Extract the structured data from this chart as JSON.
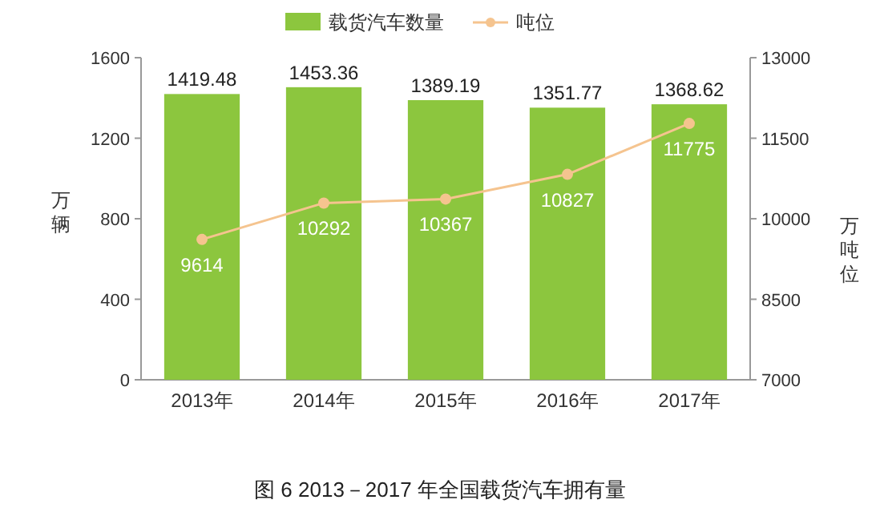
{
  "chart_data": {
    "type": "bar",
    "title": "图 6   2013－2017 年全国载货汽车拥有量",
    "categories": [
      "2013年",
      "2014年",
      "2015年",
      "2016年",
      "2017年"
    ],
    "series": [
      {
        "name": "载货汽车数量",
        "color": "#8cc63e",
        "values": [
          1419.48,
          1453.36,
          1389.19,
          1351.77,
          1368.62
        ]
      },
      {
        "name": "吨位",
        "type": "line",
        "axis": "y2",
        "color": "#f5c48f",
        "marker": "circle",
        "values": [
          9614,
          10292,
          10367,
          10827,
          11775
        ]
      }
    ],
    "ylabel": "万辆",
    "y2label": "万吨位",
    "ylim": [
      0,
      1600
    ],
    "yticks": [
      0,
      400,
      800,
      1200,
      1600
    ],
    "y2lim": [
      7000,
      13000
    ],
    "y2ticks": [
      7000,
      8500,
      10000,
      11500,
      13000
    ],
    "legend": "top",
    "data_labels": true,
    "grid": false
  }
}
